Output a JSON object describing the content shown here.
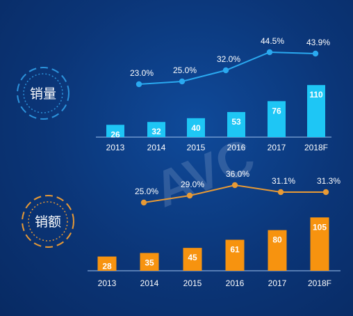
{
  "chart_data": [
    {
      "type": "bar",
      "label": "销量",
      "categories": [
        "2013",
        "2014",
        "2015",
        "2016",
        "2017",
        "2018F"
      ],
      "values": [
        26,
        32,
        40,
        53,
        76,
        110
      ],
      "growth_line": {
        "categories": [
          "2014",
          "2015",
          "2016",
          "2017",
          "2018F"
        ],
        "values": [
          "23.0%",
          "25.0%",
          "32.0%",
          "44.5%",
          "43.9%"
        ]
      },
      "colors": {
        "bar": "#1ec6f5",
        "line": "#2aa9f0"
      }
    },
    {
      "type": "bar",
      "label": "销额",
      "categories": [
        "2013",
        "2014",
        "2015",
        "2016",
        "2017",
        "2018F"
      ],
      "values": [
        28,
        35,
        45,
        61,
        80,
        105
      ],
      "growth_line": {
        "categories": [
          "2014",
          "2015",
          "2016",
          "2017",
          "2018F"
        ],
        "values": [
          "25.0%",
          "29.0%",
          "36.0%",
          "31.1%",
          "31.3%"
        ]
      },
      "colors": {
        "bar": "#f7930f",
        "line": "#e89a35"
      }
    }
  ],
  "watermark": "AVC"
}
